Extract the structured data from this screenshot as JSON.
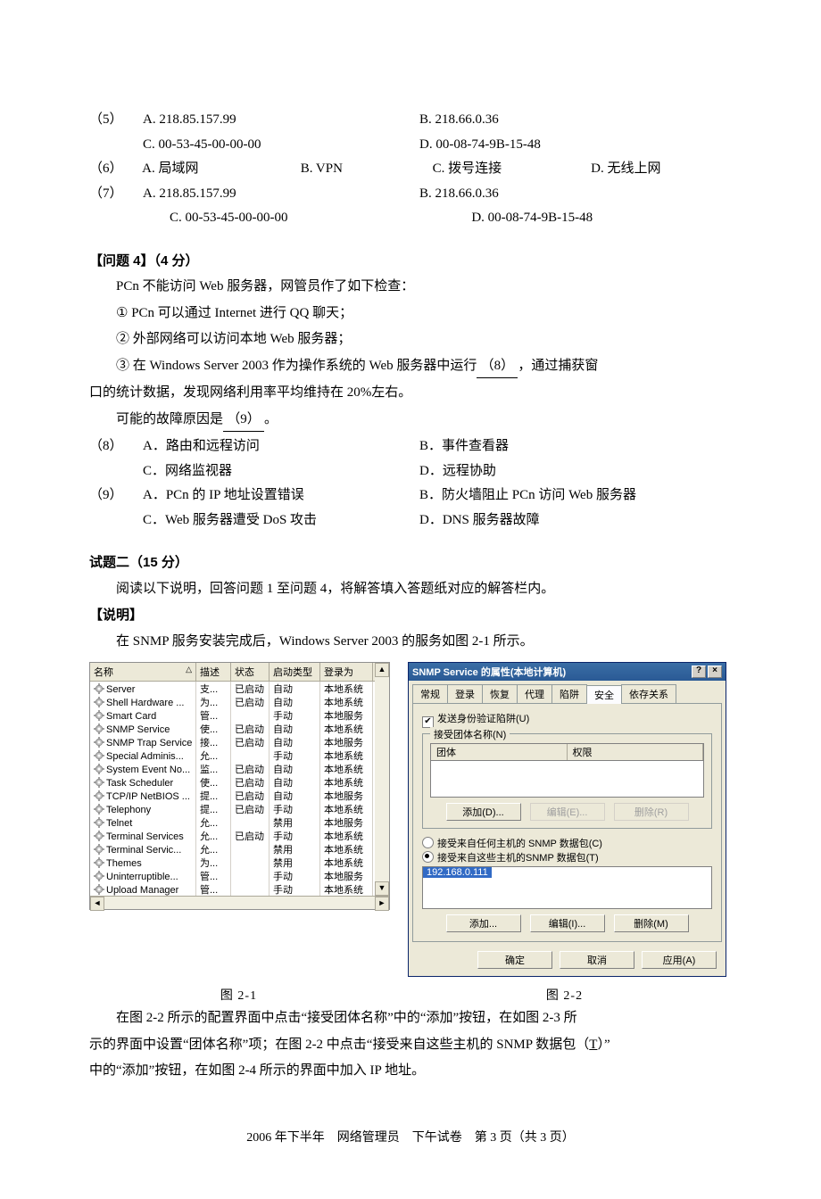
{
  "options": {
    "q5": {
      "num": "（5）",
      "A": "A. 218.85.157.99",
      "B": "B. 218.66.0.36",
      "C": "C. 00-53-45-00-00-00",
      "D": "D. 00-08-74-9B-15-48"
    },
    "q6": {
      "num": "（6）",
      "A": "A. 局域网",
      "B": "B. VPN",
      "C": "C. 拨号连接",
      "D": "D. 无线上网"
    },
    "q7": {
      "num": "（7）",
      "A": "A. 218.85.157.99",
      "B": "B. 218.66.0.36",
      "C": "C. 00-53-45-00-00-00",
      "D": "D. 00-08-74-9B-15-48"
    },
    "q8": {
      "num": "（8）",
      "A": "A．路由和远程访问",
      "B": "B．事件查看器",
      "C": "C．网络监视器",
      "D": "D．远程协助"
    },
    "q9": {
      "num": "（9）",
      "A": "A．PCn 的 IP 地址设置错误",
      "B": "B．防火墙阻止 PCn 访问 Web 服务器",
      "C": "C．Web 服务器遭受 DoS 攻击",
      "D": "D．DNS 服务器故障"
    }
  },
  "q4": {
    "heading": "【问题 4】（4 分）",
    "line1": "PCn 不能访问 Web 服务器，网管员作了如下检查：",
    "item1": "① PCn 可以通过 Internet 进行 QQ 聊天；",
    "item2": "② 外部网络可以访问本地 Web 服务器；",
    "item3a": "③ 在 Windows Server 2003 作为操作系统的 Web 服务器中运行",
    "blank3": "（8）",
    "item3b": "，通过捕获窗",
    "item3c": "口的统计数据，发现网络利用率平均维持在 20%左右。",
    "line2a": "可能的故障原因是",
    "blank4": "（9）",
    "line2b": "。"
  },
  "sec2": {
    "title": "试题二（15 分）",
    "line1": "阅读以下说明，回答问题 1 至问题 4，将解答填入答题纸对应的解答栏内。",
    "subhead": "【说明】",
    "line2": "在 SNMP 服务安装完成后，Windows Server 2003 的服务如图 2-1 所示。",
    "after1": "在图 2-2 所示的配置界面中点击“接受团体名称”中的“添加”按钮，在如图 2-3 所",
    "after2a": "示的界面中设置“团体名称”项；在图 2-2 中点击“接受来自这些主机的 SNMP 数据包（",
    "after2_T": "T",
    "after2b": "）”",
    "after3": "中的“添加”按钮，在如图 2-4 所示的界面中加入 IP 地址。"
  },
  "services": {
    "cols": {
      "name": "名称",
      "sort": "△",
      "desc": "描述",
      "stat": "状态",
      "type": "启动类型",
      "logon": "登录为",
      "up": "▲"
    },
    "rows": [
      {
        "name": "Server",
        "desc": "支...",
        "stat": "已启动",
        "type": "自动",
        "logon": "本地系统"
      },
      {
        "name": "Shell Hardware ...",
        "desc": "为...",
        "stat": "已启动",
        "type": "自动",
        "logon": "本地系统"
      },
      {
        "name": "Smart Card",
        "desc": "管...",
        "stat": "",
        "type": "手动",
        "logon": "本地服务"
      },
      {
        "name": "SNMP Service",
        "desc": "使...",
        "stat": "已启动",
        "type": "自动",
        "logon": "本地系统"
      },
      {
        "name": "SNMP Trap Service",
        "desc": "接...",
        "stat": "已启动",
        "type": "自动",
        "logon": "本地服务"
      },
      {
        "name": "Special Adminis...",
        "desc": "允...",
        "stat": "",
        "type": "手动",
        "logon": "本地系统"
      },
      {
        "name": "System Event No...",
        "desc": "监...",
        "stat": "已启动",
        "type": "自动",
        "logon": "本地系统"
      },
      {
        "name": "Task Scheduler",
        "desc": "使...",
        "stat": "已启动",
        "type": "自动",
        "logon": "本地系统"
      },
      {
        "name": "TCP/IP NetBIOS ...",
        "desc": "提...",
        "stat": "已启动",
        "type": "自动",
        "logon": "本地服务"
      },
      {
        "name": "Telephony",
        "desc": "提...",
        "stat": "已启动",
        "type": "手动",
        "logon": "本地系统"
      },
      {
        "name": "Telnet",
        "desc": "允...",
        "stat": "",
        "type": "禁用",
        "logon": "本地服务"
      },
      {
        "name": "Terminal Services",
        "desc": "允...",
        "stat": "已启动",
        "type": "手动",
        "logon": "本地系统"
      },
      {
        "name": "Terminal Servic...",
        "desc": "允...",
        "stat": "",
        "type": "禁用",
        "logon": "本地系统"
      },
      {
        "name": "Themes",
        "desc": "为...",
        "stat": "",
        "type": "禁用",
        "logon": "本地系统"
      },
      {
        "name": "Uninterruptible...",
        "desc": "管...",
        "stat": "",
        "type": "手动",
        "logon": "本地服务"
      },
      {
        "name": "Upload Manager",
        "desc": "管...",
        "stat": "",
        "type": "手动",
        "logon": "本地系统"
      }
    ],
    "caption": "图 2-1"
  },
  "dialog": {
    "title": "SNMP Service 的属性(本地计算机)",
    "help": "?",
    "close": "×",
    "tabs": [
      "常规",
      "登录",
      "恢复",
      "代理",
      "陷阱",
      "安全",
      "依存关系"
    ],
    "active_tab_index": 5,
    "chk_label": "发送身份验证陷阱(U)",
    "grp1_title": "接受团体名称(N)",
    "grp1_cols": [
      "团体",
      "权限"
    ],
    "btn_add1": "添加(D)...",
    "btn_edit1": "编辑(E)...",
    "btn_del1": "删除(R)",
    "radio1": "接受来自任何主机的 SNMP 数据包(C)",
    "radio2": "接受来自这些主机的SNMP 数据包(T)",
    "ip": "192.168.0.111",
    "btn_add2": "添加...",
    "btn_edit2": "编辑(I)...",
    "btn_del2": "删除(M)",
    "ok": "确定",
    "cancel": "取消",
    "apply": "应用(A)",
    "caption": "图 2-2"
  },
  "footer": "2006 年下半年　网络管理员　下午试卷　第 3 页（共 3 页）"
}
